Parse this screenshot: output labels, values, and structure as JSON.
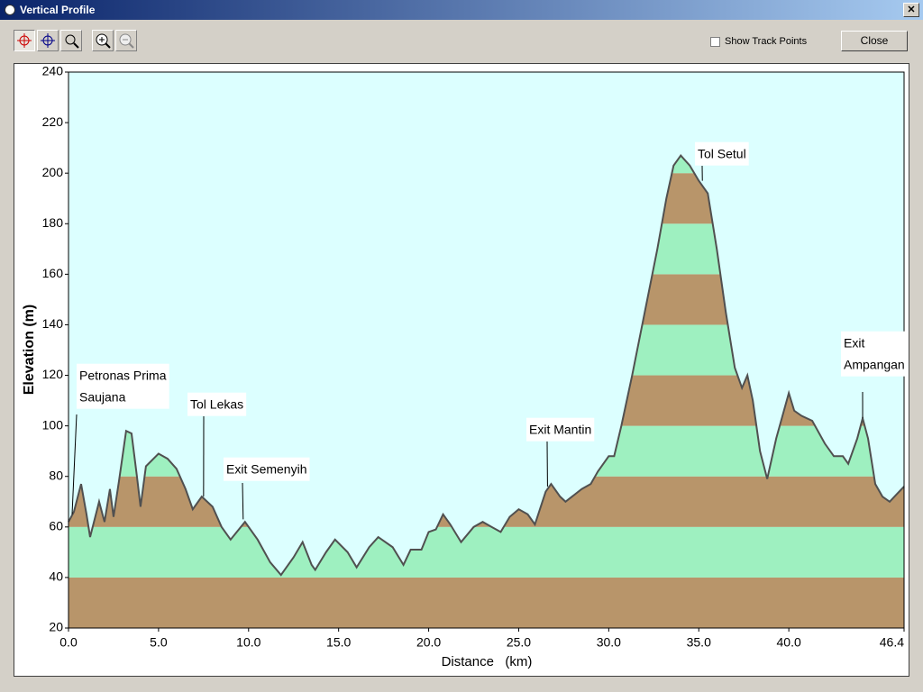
{
  "window": {
    "title": "Vertical Profile"
  },
  "toolbar": {
    "checkbox_label": "Show Track Points",
    "close_button": "Close"
  },
  "chart_data": {
    "type": "area",
    "x_label": "Distance   (km)",
    "y_label": "Elevation (m)",
    "x": [
      0.0,
      0.3,
      0.7,
      1.0,
      1.2,
      1.7,
      2.0,
      2.3,
      2.5,
      2.8,
      3.2,
      3.5,
      3.8,
      4.0,
      4.3,
      5.0,
      5.5,
      6.0,
      6.5,
      6.9,
      7.4,
      8.0,
      8.5,
      9.0,
      9.8,
      10.5,
      11.2,
      11.8,
      12.5,
      13.0,
      13.5,
      13.7,
      14.3,
      14.8,
      15.5,
      16.0,
      16.7,
      17.2,
      18.0,
      18.6,
      19.0,
      19.6,
      20.0,
      20.4,
      20.8,
      21.2,
      21.8,
      22.5,
      23.0,
      23.5,
      24.0,
      24.5,
      25.0,
      25.5,
      25.9,
      26.5,
      26.8,
      27.3,
      27.6,
      28.5,
      29.0,
      29.4,
      30.0,
      30.3,
      30.7,
      31.3,
      32.0,
      32.7,
      33.2,
      33.6,
      34.0,
      34.5,
      35.0,
      35.5,
      36.0,
      36.5,
      37.0,
      37.4,
      37.7,
      38.0,
      38.4,
      38.8,
      39.3,
      40.0,
      40.3,
      40.7,
      41.3,
      42.0,
      42.5,
      43.0,
      43.3,
      43.8,
      44.1,
      44.4,
      44.8,
      45.2,
      45.6,
      46.0,
      46.4
    ],
    "values": [
      62,
      66,
      77,
      65,
      56,
      70,
      62,
      75,
      64,
      78,
      98,
      97,
      80,
      68,
      84,
      89,
      87,
      83,
      75,
      67,
      72,
      68,
      60,
      55,
      62,
      55,
      46,
      41,
      48,
      54,
      45,
      43,
      50,
      55,
      50,
      44,
      52,
      56,
      52,
      45,
      51,
      51,
      58,
      59,
      65,
      61,
      54,
      60,
      62,
      60,
      58,
      64,
      67,
      65,
      61,
      74,
      77,
      72,
      70,
      75,
      77,
      82,
      88,
      88,
      100,
      120,
      145,
      170,
      190,
      203,
      207,
      203,
      197,
      192,
      170,
      145,
      123,
      115,
      120,
      110,
      90,
      79,
      95,
      113,
      106,
      104,
      102,
      93,
      88,
      88,
      85,
      95,
      103,
      95,
      77,
      72,
      70,
      73,
      76
    ],
    "color": "#505050",
    "band_colors": [
      "#b8956a",
      "#9ef0c0"
    ],
    "background": "#dcffff",
    "xlim": [
      0,
      46.4
    ],
    "ylim": [
      20,
      240
    ],
    "xticks": [
      {
        "value": 0,
        "label": "0.0"
      },
      {
        "value": 5,
        "label": "5.0"
      },
      {
        "value": 10,
        "label": "10.0"
      },
      {
        "value": 15,
        "label": "15.0"
      },
      {
        "value": 20,
        "label": "20.0"
      },
      {
        "value": 25,
        "label": "25.0"
      },
      {
        "value": 30,
        "label": "30.0"
      },
      {
        "value": 35,
        "label": "35.0"
      },
      {
        "value": 40,
        "label": "40.0"
      },
      46.4
    ],
    "yticks": [
      20,
      40,
      60,
      80,
      100,
      120,
      140,
      160,
      180,
      200,
      220,
      240
    ],
    "annotations": [
      {
        "lines": [
          "Petronas Prima",
          "Saujana"
        ],
        "x": 0.2,
        "y": 65
      },
      {
        "lines": [
          "Tol Lekas"
        ],
        "x": 7.5,
        "y": 72
      },
      {
        "lines": [
          "Exit Semenyih"
        ],
        "x": 9.7,
        "y": 63
      },
      {
        "lines": [
          "Exit Mantin"
        ],
        "x": 26.6,
        "y": 76
      },
      {
        "lines": [
          "Tol Setul"
        ],
        "x": 35.2,
        "y": 197
      },
      {
        "lines": [
          "Exit",
          "Ampangan"
        ],
        "x": 44.1,
        "y": 103
      }
    ]
  }
}
